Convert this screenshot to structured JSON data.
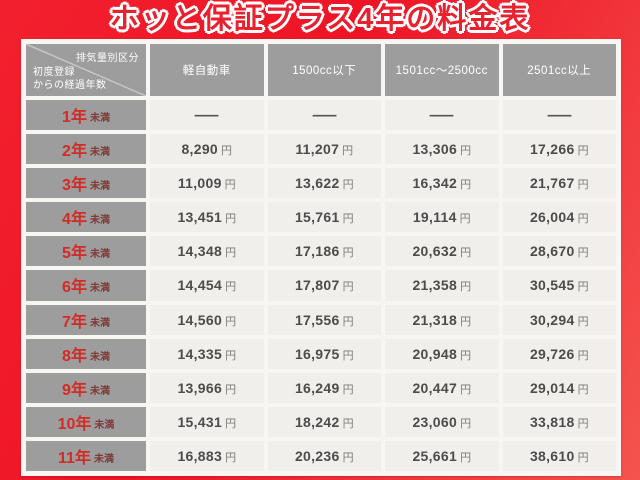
{
  "title": "ホッと保証プラス4年の料金表",
  "table": {
    "corner_top_right": "排気量別区分",
    "corner_bottom_left_line1": "初度登録",
    "corner_bottom_left_line2": "からの経過年数",
    "columns": [
      "軽自動車",
      "1500cc以下",
      "1501cc〜2500cc",
      "2501cc以上"
    ],
    "unit": "円",
    "empty_marker": "—",
    "rows": [
      {
        "year": "1年",
        "suffix": "未満",
        "values": [
          "—",
          "—",
          "—",
          "—"
        ]
      },
      {
        "year": "2年",
        "suffix": "未満",
        "values": [
          "8,290",
          "11,207",
          "13,306",
          "17,266"
        ]
      },
      {
        "year": "3年",
        "suffix": "未満",
        "values": [
          "11,009",
          "13,622",
          "16,342",
          "21,767"
        ]
      },
      {
        "year": "4年",
        "suffix": "未満",
        "values": [
          "13,451",
          "15,761",
          "19,114",
          "26,004"
        ]
      },
      {
        "year": "5年",
        "suffix": "未満",
        "values": [
          "14,348",
          "17,186",
          "20,632",
          "28,670"
        ]
      },
      {
        "year": "6年",
        "suffix": "未満",
        "values": [
          "14,454",
          "17,807",
          "21,358",
          "30,545"
        ]
      },
      {
        "year": "7年",
        "suffix": "未満",
        "values": [
          "14,560",
          "17,556",
          "21,318",
          "30,294"
        ]
      },
      {
        "year": "8年",
        "suffix": "未満",
        "values": [
          "14,335",
          "16,975",
          "20,948",
          "29,726"
        ]
      },
      {
        "year": "9年",
        "suffix": "未満",
        "values": [
          "13,966",
          "16,249",
          "20,447",
          "29,014"
        ]
      },
      {
        "year": "10年",
        "suffix": "未満",
        "values": [
          "15,431",
          "18,242",
          "23,060",
          "33,818"
        ]
      },
      {
        "year": "11年",
        "suffix": "未満",
        "values": [
          "16,883",
          "20,236",
          "25,661",
          "38,610"
        ]
      }
    ]
  },
  "colors": {
    "background_red": "#ee1426",
    "background_red_light": "#f4544e",
    "title_red": "#e8212f",
    "header_gray": "#9d9d9d",
    "panel_bg": "#f8f6f3",
    "cell_bg": "#f1efec",
    "year_red": "#d32b26",
    "suffix_maroon": "#7e3a36",
    "value_gray": "#4c4c4c"
  },
  "chart_data": {
    "type": "table",
    "title": "ホッと保証プラス4年の料金表",
    "column_axis_label": "排気量別区分",
    "row_axis_label": "初度登録からの経過年数",
    "columns": [
      "軽自動車",
      "1500cc以下",
      "1501cc〜2500cc",
      "2501cc以上"
    ],
    "row_labels": [
      "1年未満",
      "2年未満",
      "3年未満",
      "4年未満",
      "5年未満",
      "6年未満",
      "7年未満",
      "8年未満",
      "9年未満",
      "10年未満",
      "11年未満"
    ],
    "unit": "円",
    "values_yen": [
      [
        null,
        null,
        null,
        null
      ],
      [
        8290,
        11207,
        13306,
        17266
      ],
      [
        11009,
        13622,
        16342,
        21767
      ],
      [
        13451,
        15761,
        19114,
        26004
      ],
      [
        14348,
        17186,
        20632,
        28670
      ],
      [
        14454,
        17807,
        21358,
        30545
      ],
      [
        14560,
        17556,
        21318,
        30294
      ],
      [
        14335,
        16975,
        20948,
        29726
      ],
      [
        13966,
        16249,
        20447,
        29014
      ],
      [
        15431,
        18242,
        23060,
        33818
      ],
      [
        16883,
        20236,
        25661,
        38610
      ]
    ]
  }
}
